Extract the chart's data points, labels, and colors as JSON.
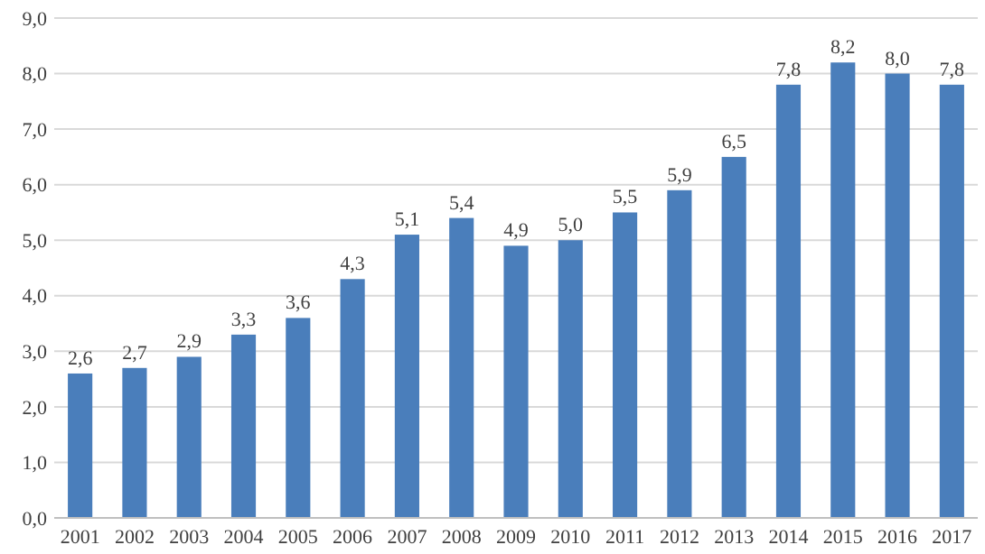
{
  "chart_data": {
    "type": "bar",
    "categories": [
      "2001",
      "2002",
      "2003",
      "2004",
      "2005",
      "2006",
      "2007",
      "2008",
      "2009",
      "2010",
      "2011",
      "2012",
      "2013",
      "2014",
      "2015",
      "2016",
      "2017"
    ],
    "values": [
      2.6,
      2.7,
      2.9,
      3.3,
      3.6,
      4.3,
      5.1,
      5.4,
      4.9,
      5.0,
      5.5,
      5.9,
      6.5,
      7.8,
      8.2,
      8.0,
      7.8
    ],
    "value_labels": [
      "2,6",
      "2,7",
      "2,9",
      "3,3",
      "3,6",
      "4,3",
      "5,1",
      "5,4",
      "4,9",
      "5,0",
      "5,5",
      "5,9",
      "6,5",
      "7,8",
      "8,2",
      "8,0",
      "7,8"
    ],
    "color": "#4a7ebb",
    "ylim": [
      0,
      9
    ],
    "yticks": [
      {
        "value": 0,
        "label": "0,0"
      },
      {
        "value": 1,
        "label": "1,0"
      },
      {
        "value": 2,
        "label": "2,0"
      },
      {
        "value": 3,
        "label": "3,0"
      },
      {
        "value": 4,
        "label": "4,0"
      },
      {
        "value": 5,
        "label": "5,0"
      },
      {
        "value": 6,
        "label": "6,0"
      },
      {
        "value": 7,
        "label": "7,0"
      },
      {
        "value": 8,
        "label": "8,0"
      },
      {
        "value": 9,
        "label": "9,0"
      }
    ],
    "grid": "y"
  }
}
